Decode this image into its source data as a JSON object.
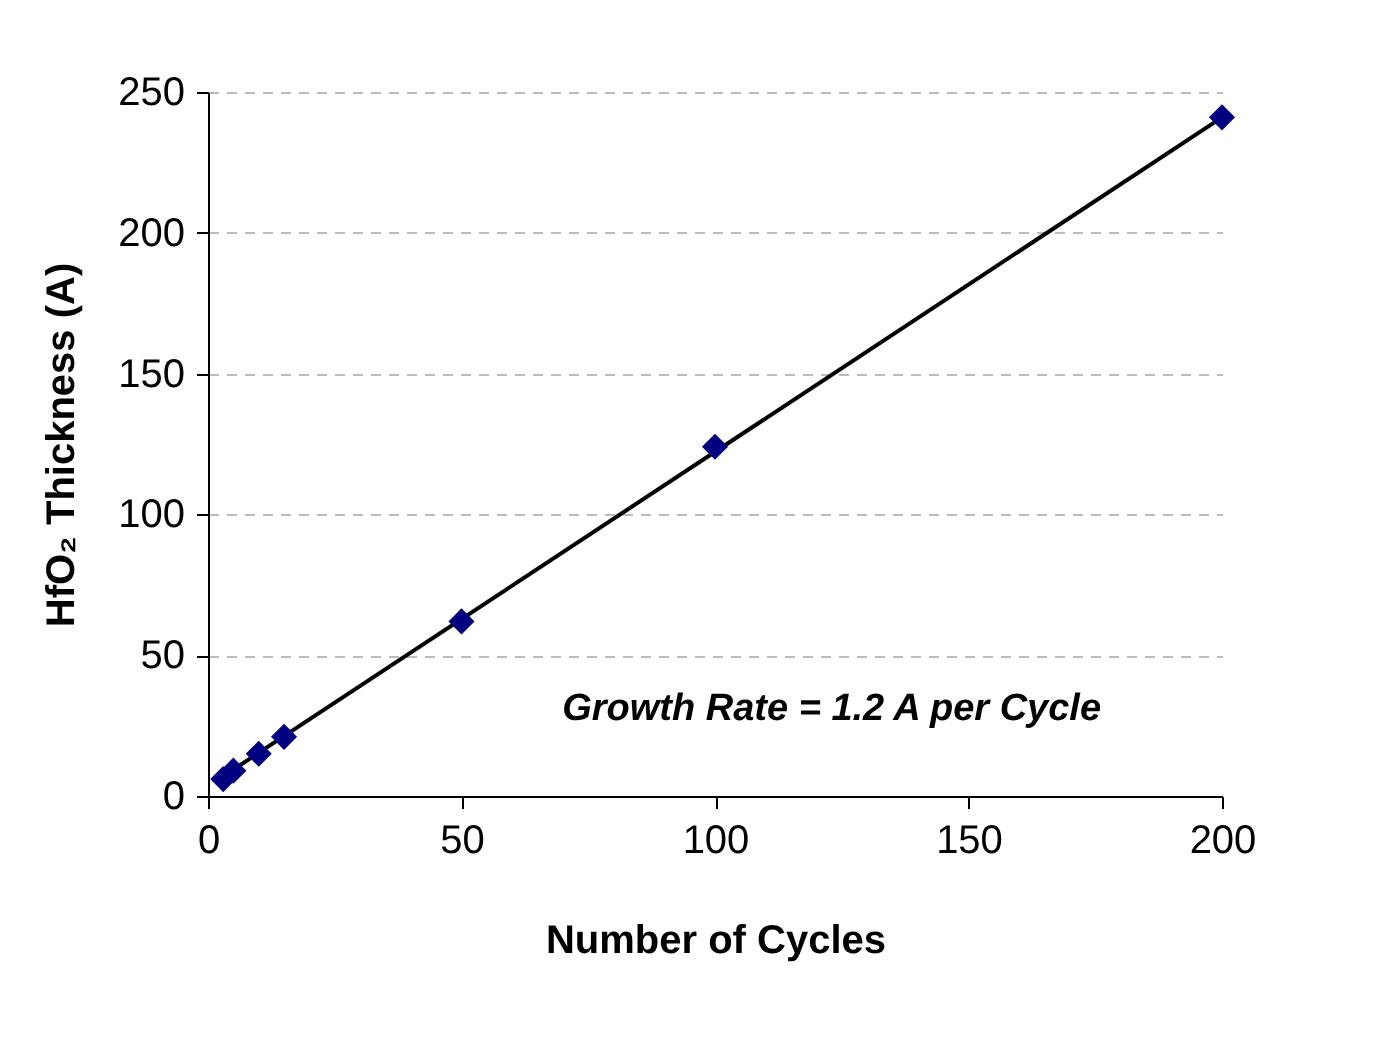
{
  "chart_data": {
    "type": "scatter",
    "xlabel": "Number of Cycles",
    "ylabel": "HfO₂ Thickness (A)",
    "xlim": [
      0,
      200
    ],
    "xticks": [
      0,
      50,
      100,
      150,
      200
    ],
    "ylim": [
      0,
      250
    ],
    "yticks": [
      0,
      50,
      100,
      150,
      200,
      250
    ],
    "grid": "y",
    "marker": "diamond",
    "annotations": [
      "Growth Rate = 1.2 A per Cycle"
    ],
    "series": [
      {
        "type": "line",
        "color": "#000000",
        "x": [
          3,
          200
        ],
        "values": [
          7,
          241
        ],
        "marker": "none"
      },
      {
        "color": "#000080",
        "x": [
          3,
          5,
          10,
          15,
          50,
          100,
          200
        ],
        "values": [
          6,
          9,
          15,
          21,
          62,
          124,
          241
        ]
      }
    ]
  }
}
